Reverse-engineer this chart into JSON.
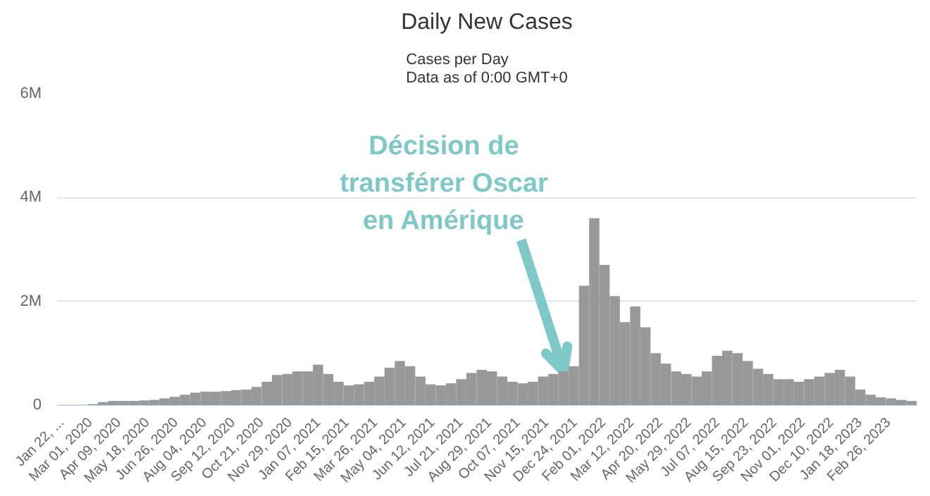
{
  "chart_data": {
    "type": "bar",
    "title": "Daily New Cases",
    "subtitle": "Cases per Day\nData as of 0:00 GMT+0",
    "x": [
      "2020-01-22",
      "2020-02-05",
      "2020-02-19",
      "2020-03-04",
      "2020-03-18",
      "2020-04-01",
      "2020-04-15",
      "2020-04-29",
      "2020-05-13",
      "2020-05-27",
      "2020-06-10",
      "2020-06-24",
      "2020-07-08",
      "2020-07-22",
      "2020-08-05",
      "2020-08-19",
      "2020-09-02",
      "2020-09-16",
      "2020-09-30",
      "2020-10-14",
      "2020-10-28",
      "2020-11-11",
      "2020-11-25",
      "2020-12-09",
      "2020-12-23",
      "2021-01-06",
      "2021-01-20",
      "2021-02-03",
      "2021-02-17",
      "2021-03-03",
      "2021-03-17",
      "2021-03-31",
      "2021-04-14",
      "2021-04-28",
      "2021-05-12",
      "2021-05-26",
      "2021-06-09",
      "2021-06-23",
      "2021-07-07",
      "2021-07-21",
      "2021-08-04",
      "2021-08-18",
      "2021-09-01",
      "2021-09-15",
      "2021-09-29",
      "2021-10-13",
      "2021-10-27",
      "2021-11-10",
      "2021-11-24",
      "2021-12-08",
      "2021-12-22",
      "2022-01-05",
      "2022-01-19",
      "2022-02-02",
      "2022-02-16",
      "2022-03-02",
      "2022-03-16",
      "2022-03-30",
      "2022-04-13",
      "2022-04-27",
      "2022-05-11",
      "2022-05-25",
      "2022-06-08",
      "2022-06-22",
      "2022-07-06",
      "2022-07-20",
      "2022-08-03",
      "2022-08-17",
      "2022-08-31",
      "2022-09-14",
      "2022-09-28",
      "2022-10-12",
      "2022-10-26",
      "2022-11-09",
      "2022-11-23",
      "2022-12-07",
      "2022-12-21",
      "2023-01-04",
      "2023-01-18",
      "2023-02-01",
      "2023-02-15",
      "2023-03-01",
      "2023-03-15",
      "2023-03-29"
    ],
    "series": [
      {
        "color": "#999999",
        "values": [
          0,
          0,
          0,
          20000,
          60000,
          80000,
          80000,
          80000,
          90000,
          100000,
          130000,
          160000,
          200000,
          240000,
          260000,
          260000,
          270000,
          290000,
          300000,
          350000,
          450000,
          580000,
          600000,
          650000,
          650000,
          780000,
          600000,
          450000,
          380000,
          400000,
          450000,
          550000,
          720000,
          850000,
          750000,
          550000,
          400000,
          380000,
          420000,
          500000,
          620000,
          680000,
          650000,
          550000,
          450000,
          420000,
          450000,
          550000,
          600000,
          650000,
          750000,
          2300000,
          3600000,
          2700000,
          2100000,
          1600000,
          1900000,
          1500000,
          1000000,
          800000,
          650000,
          600000,
          550000,
          650000,
          950000,
          1050000,
          1000000,
          850000,
          700000,
          600000,
          500000,
          500000,
          450000,
          500000,
          550000,
          620000,
          680000,
          550000,
          300000,
          200000,
          150000,
          130000,
          100000,
          80000
        ]
      }
    ],
    "xlim": [
      "2020-01-15",
      "2023-04-05"
    ],
    "xticks": [
      {
        "value": "2020-01-22",
        "label": "Jan 22, ..."
      },
      {
        "value": "2020-03-01",
        "label": "Mar 01, 2020"
      },
      {
        "value": "2020-04-09",
        "label": "Apr 09, 2020"
      },
      {
        "value": "2020-05-18",
        "label": "May 18, 2020"
      },
      {
        "value": "2020-06-26",
        "label": "Jun 26, 2020"
      },
      {
        "value": "2020-08-04",
        "label": "Aug 04, 2020"
      },
      {
        "value": "2020-09-12",
        "label": "Sep 12, 2020"
      },
      {
        "value": "2020-10-21",
        "label": "Oct 21, 2020"
      },
      {
        "value": "2020-11-29",
        "label": "Nov 29, 2020"
      },
      {
        "value": "2021-01-07",
        "label": "Jan 07, 2021"
      },
      {
        "value": "2021-02-15",
        "label": "Feb 15, 2021"
      },
      {
        "value": "2021-03-26",
        "label": "Mar 26, 2021"
      },
      {
        "value": "2021-05-04",
        "label": "May 04, 2021"
      },
      {
        "value": "2021-06-12",
        "label": "Jun 12, 2021"
      },
      {
        "value": "2021-07-21",
        "label": "Jul 21, 2021"
      },
      {
        "value": "2021-08-29",
        "label": "Aug 29, 2021"
      },
      {
        "value": "2021-10-07",
        "label": "Oct 07, 2021"
      },
      {
        "value": "2021-11-15",
        "label": "Nov 15, 2021"
      },
      {
        "value": "2021-12-24",
        "label": "Dec 24, 2021"
      },
      {
        "value": "2022-02-01",
        "label": "Feb 01, 2022"
      },
      {
        "value": "2022-03-12",
        "label": "Mar 12, 2022"
      },
      {
        "value": "2022-04-20",
        "label": "Apr 20, 2022"
      },
      {
        "value": "2022-05-29",
        "label": "May 29, 2022"
      },
      {
        "value": "2022-07-07",
        "label": "Jul 07, 2022"
      },
      {
        "value": "2022-08-15",
        "label": "Aug 15, 2022"
      },
      {
        "value": "2022-09-23",
        "label": "Sep 23, 2022"
      },
      {
        "value": "2022-11-01",
        "label": "Nov 01, 2022"
      },
      {
        "value": "2022-12-10",
        "label": "Dec 10, 2022"
      },
      {
        "value": "2023-01-18",
        "label": "Jan 18, 2023"
      },
      {
        "value": "2023-02-26",
        "label": "Feb 26, 2023"
      }
    ],
    "ylim": [
      0,
      6000000
    ],
    "yticks": [
      {
        "value": 0,
        "label": "0"
      },
      {
        "value": 2000000,
        "label": "2M"
      },
      {
        "value": 4000000,
        "label": "4M"
      },
      {
        "value": 6000000,
        "label": "6M"
      }
    ],
    "grid": "y",
    "annotations": [
      {
        "text": "Décision de\ntransférer Oscar\nen Amérique",
        "x": "2021-12-08",
        "y": 650000
      }
    ]
  }
}
